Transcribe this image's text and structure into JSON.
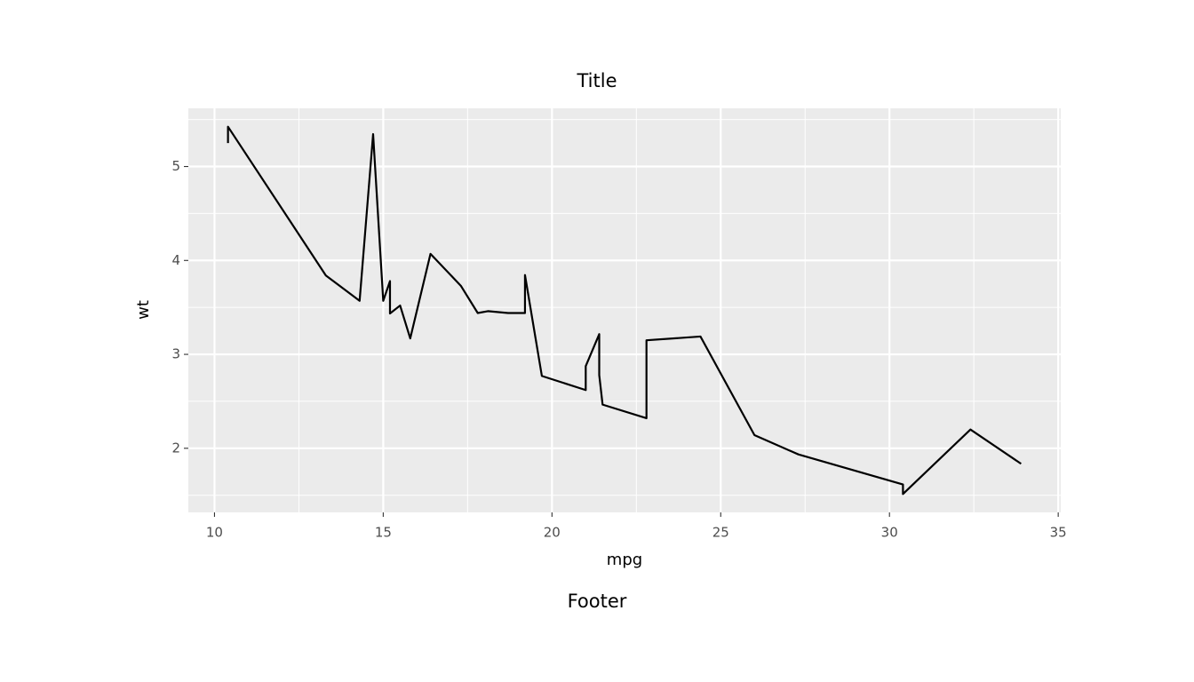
{
  "chart_data": {
    "type": "line",
    "title": "Title",
    "caption": "Footer",
    "x_label": "mpg",
    "y_label": "wt",
    "x": [
      10.4,
      10.4,
      13.3,
      14.3,
      14.7,
      15.0,
      15.2,
      15.2,
      15.5,
      15.8,
      16.4,
      17.3,
      17.8,
      18.1,
      18.7,
      19.2,
      19.2,
      19.7,
      21.0,
      21.0,
      21.4,
      21.4,
      21.5,
      22.8,
      22.8,
      24.4,
      26.0,
      27.3,
      30.4,
      30.4,
      32.4,
      33.9
    ],
    "values": [
      5.25,
      5.424,
      3.84,
      3.57,
      5.345,
      3.57,
      3.78,
      3.435,
      3.52,
      3.17,
      4.07,
      3.73,
      3.44,
      3.46,
      3.44,
      3.44,
      3.845,
      2.77,
      2.62,
      2.875,
      3.215,
      2.78,
      2.465,
      2.32,
      3.15,
      3.19,
      2.14,
      1.935,
      1.615,
      1.513,
      2.2,
      1.835
    ],
    "color": "#000000",
    "xlim": [
      9.225,
      35.075
    ],
    "xticks": [
      10,
      15,
      20,
      25,
      30,
      35
    ],
    "xminor": [
      12.5,
      17.5,
      22.5,
      27.5,
      32.5
    ],
    "ylim": [
      1.31745,
      5.61955
    ],
    "yticks": [
      2,
      3,
      4,
      5
    ],
    "yminor": [
      1.5,
      2.5,
      3.5,
      4.5,
      5.5
    ],
    "grid": true
  }
}
